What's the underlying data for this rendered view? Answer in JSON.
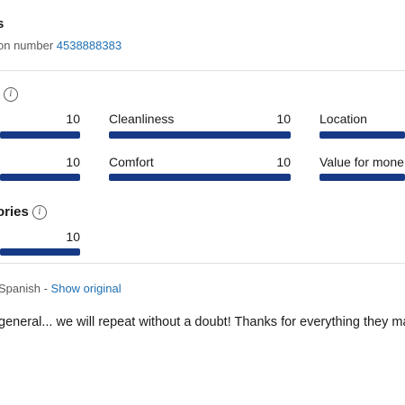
{
  "header": {
    "title": "s",
    "booking_prefix": "on number ",
    "booking_number": "4538888383"
  },
  "categories": [
    {
      "label": "",
      "score": "10",
      "fraction": 1.0
    },
    {
      "label": "Cleanliness",
      "score": "10",
      "fraction": 1.0
    },
    {
      "label": "Location",
      "score": "",
      "fraction": 1.0
    },
    {
      "label": "",
      "score": "10",
      "fraction": 1.0
    },
    {
      "label": "Comfort",
      "score": "10",
      "fraction": 1.0
    },
    {
      "label": "Value for mone",
      "score": "",
      "fraction": 1.0
    }
  ],
  "subsection": {
    "label": "ories",
    "score": "10",
    "fraction": 1.0
  },
  "translation": {
    "language": "Spanish",
    "separator": " - ",
    "show_original": "Show original"
  },
  "review": {
    "text": "general... we will repeat without a doubt! Thanks for everything they ma"
  },
  "icons": {
    "info": "info-icon"
  },
  "colors": {
    "bar": "#163a85",
    "link": "#1f6fb2"
  }
}
